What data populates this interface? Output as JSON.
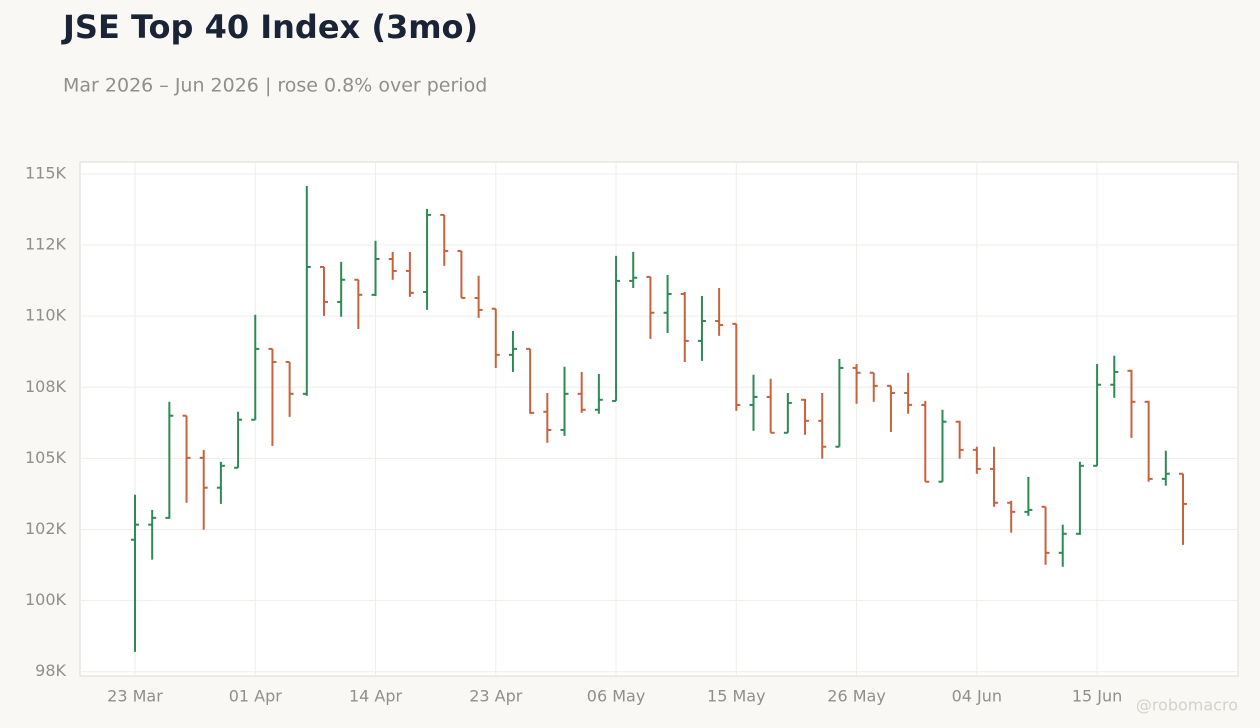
{
  "chart_data": {
    "type": "ohlc",
    "title": "JSE Top 40 Index (3mo)",
    "subtitle": "Mar 2026 – Jun 2026 | rose 0.8% over period",
    "watermark": "@robomacro",
    "up_color": "#2e8a55",
    "down_color": "#c8623e",
    "grid": true,
    "categories": [
      "23 Mar",
      null,
      null,
      null,
      null,
      null,
      null,
      "01 Apr",
      null,
      null,
      null,
      null,
      null,
      null,
      "14 Apr",
      null,
      null,
      null,
      null,
      null,
      null,
      "23 Apr",
      null,
      null,
      null,
      null,
      null,
      null,
      "06 May",
      null,
      null,
      null,
      null,
      null,
      null,
      "15 May",
      null,
      null,
      null,
      null,
      null,
      null,
      "26 May",
      null,
      null,
      null,
      null,
      null,
      null,
      "04 Jun",
      null,
      null,
      null,
      null,
      null,
      null,
      "15 Jun",
      null,
      null,
      null,
      null,
      null
    ],
    "open": [
      102140,
      102670,
      102910,
      106500,
      105020,
      103970,
      104670,
      106360,
      108850,
      108390,
      107270,
      111730,
      110500,
      111280,
      110750,
      112010,
      111590,
      110850,
      113560,
      112290,
      110640,
      110260,
      108640,
      108850,
      106640,
      106000,
      107270,
      106710,
      107020,
      111240,
      111380,
      110120,
      110780,
      109130,
      109830,
      109730,
      106880,
      107160,
      105900,
      107060,
      106320,
      105410,
      108180,
      108010,
      107550,
      107300,
      106880,
      104180,
      106290,
      105300,
      104630,
      103440,
      103120,
      103300,
      101680,
      102350,
      104740,
      107590,
      108080,
      106990,
      104280,
      104460
    ],
    "high": [
      103720,
      103190,
      106990,
      106500,
      105300,
      104880,
      106640,
      110050,
      108850,
      108390,
      114580,
      111730,
      111910,
      111280,
      112650,
      112260,
      112260,
      113770,
      113560,
      112290,
      111420,
      110260,
      109480,
      108850,
      107300,
      108220,
      108040,
      107970,
      112120,
      112260,
      111380,
      111450,
      110850,
      110710,
      110990,
      109730,
      107940,
      107800,
      107300,
      107090,
      107300,
      108500,
      108320,
      108010,
      107550,
      108010,
      107020,
      106710,
      106320,
      105410,
      105410,
      103510,
      104350,
      103300,
      102670,
      104880,
      108320,
      108610,
      108110,
      107020,
      105270,
      104460
    ],
    "low": [
      98200,
      101440,
      102880,
      103440,
      102490,
      103400,
      104670,
      106360,
      105440,
      106460,
      107200,
      110010,
      109980,
      109550,
      110710,
      111280,
      110680,
      110220,
      111770,
      110640,
      109940,
      108180,
      108040,
      106570,
      105550,
      105790,
      106600,
      106570,
      107020,
      110990,
      109200,
      109410,
      108390,
      108430,
      109310,
      106670,
      105970,
      105900,
      105900,
      105830,
      104990,
      105410,
      106920,
      106990,
      105930,
      106570,
      104180,
      104180,
      104990,
      104460,
      103300,
      102390,
      102980,
      101260,
      101190,
      102310,
      104740,
      107130,
      105720,
      104180,
      104040,
      101960
    ],
    "close": [
      102670,
      102910,
      106500,
      105020,
      103970,
      104740,
      106360,
      108850,
      108390,
      107270,
      111730,
      110500,
      111280,
      110750,
      112010,
      111590,
      110820,
      113560,
      112290,
      110640,
      110220,
      108640,
      108850,
      106600,
      106000,
      107270,
      106710,
      107060,
      111240,
      111350,
      110120,
      110780,
      109130,
      109830,
      109690,
      106880,
      107160,
      105900,
      106950,
      106320,
      105410,
      108180,
      108010,
      107550,
      107300,
      106880,
      104180,
      106290,
      105300,
      104630,
      103440,
      103120,
      103190,
      101680,
      102350,
      104740,
      107590,
      108040,
      106990,
      104280,
      104460,
      103400
    ],
    "ylim": [
      97350,
      115420
    ],
    "yticks": [
      {
        "value": 97500,
        "label": "98K"
      },
      {
        "value": 100000,
        "label": "100K"
      },
      {
        "value": 102500,
        "label": "102K"
      },
      {
        "value": 105000,
        "label": "105K"
      },
      {
        "value": 107500,
        "label": "108K"
      },
      {
        "value": 110000,
        "label": "110K"
      },
      {
        "value": 112500,
        "label": "112K"
      },
      {
        "value": 115000,
        "label": "115K"
      }
    ]
  }
}
